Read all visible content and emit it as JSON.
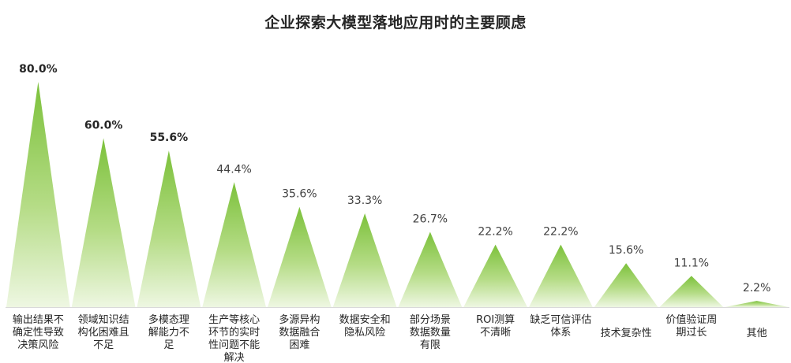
{
  "chart_data": {
    "type": "bar",
    "title": "企业探索大模型落地应用时的主要顾虑",
    "xlabel": "",
    "ylabel": "",
    "ylim": [
      0,
      80
    ],
    "grid": false,
    "legend": "none",
    "bar_shape": "triangle",
    "colors": {
      "bar_top": "#7cc13b",
      "bar_bottom": "#eef7e2",
      "baseline": "#d9d9d9"
    },
    "categories": [
      [
        "输出结果不",
        "确定性导致",
        "决策风险"
      ],
      [
        "领域知识结",
        "构化困难且",
        "不足"
      ],
      [
        "多模态理",
        "解能力不",
        "足"
      ],
      [
        "生产等核心",
        "环节的实时",
        "性问题不能",
        "解决"
      ],
      [
        "多源异构",
        "数据融合",
        "困难"
      ],
      [
        "数据安全和",
        "隐私风险"
      ],
      [
        "部分场景",
        "数据数量",
        "有限"
      ],
      [
        "ROI测算",
        "不清晰"
      ],
      [
        "缺乏可信评估",
        "体系"
      ],
      [
        "技术复杂性"
      ],
      [
        "价值验证周",
        "期过长"
      ],
      [
        "其他"
      ]
    ],
    "values": [
      80.0,
      60.0,
      55.6,
      44.4,
      35.6,
      33.3,
      26.7,
      22.2,
      22.2,
      15.6,
      11.1,
      2.2
    ],
    "value_labels": [
      "80.0%",
      "60.0%",
      "55.6%",
      "44.4%",
      "35.6%",
      "33.3%",
      "26.7%",
      "22.2%",
      "22.2%",
      "15.6%",
      "11.1%",
      "2.2%"
    ],
    "bold_labels": [
      true,
      true,
      true,
      false,
      false,
      false,
      false,
      false,
      false,
      false,
      false,
      false
    ]
  }
}
